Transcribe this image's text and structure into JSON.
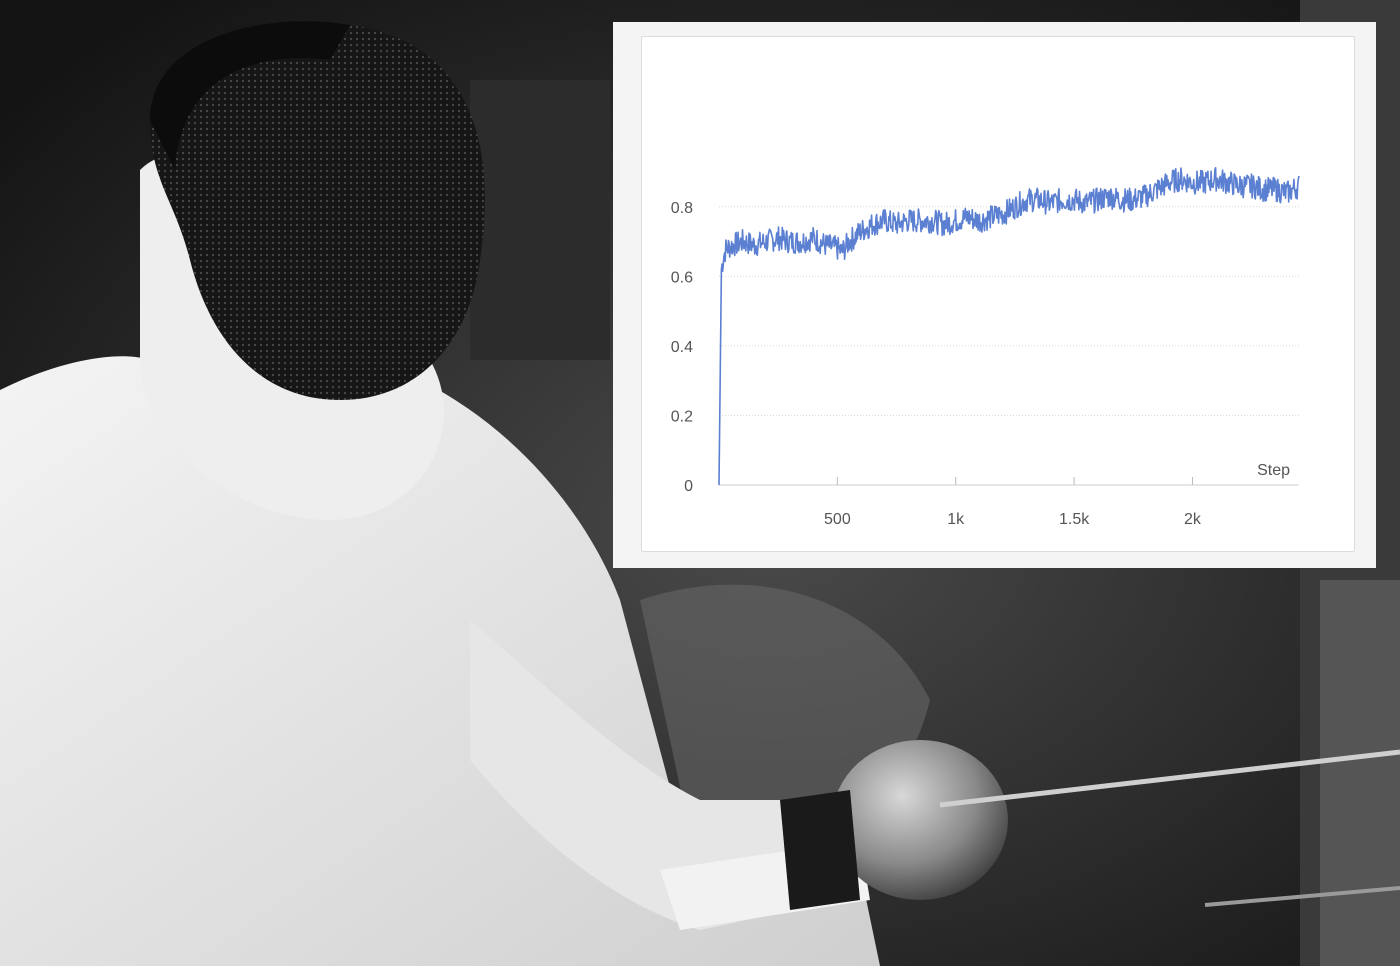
{
  "background": {
    "description_icon": "fencer-photo",
    "palette": [
      "#1f1f1f",
      "#eaeaea",
      "#3a3a3a"
    ]
  },
  "chart_data": {
    "type": "line",
    "title": "",
    "xlabel": "Step",
    "ylabel": "",
    "xlim": [
      0,
      2450
    ],
    "ylim": [
      0,
      0.9
    ],
    "x_ticks": [
      500,
      1000,
      1500,
      2000
    ],
    "x_tick_labels": [
      "500",
      "1k",
      "1.5k",
      "2k"
    ],
    "y_ticks": [
      0,
      0.2,
      0.4,
      0.6,
      0.8
    ],
    "y_tick_labels": [
      "0",
      "0.2",
      "0.4",
      "0.6",
      "0.8"
    ],
    "grid": true,
    "legend": "none",
    "series": [
      {
        "color": "#5b7fd1",
        "x": [
          0,
          10,
          20,
          30,
          60,
          100,
          150,
          200,
          250,
          300,
          350,
          400,
          450,
          500,
          520,
          550,
          600,
          650,
          700,
          750,
          800,
          850,
          900,
          950,
          1000,
          1050,
          1100,
          1150,
          1200,
          1250,
          1300,
          1350,
          1400,
          1450,
          1500,
          1550,
          1600,
          1650,
          1700,
          1750,
          1800,
          1850,
          1900,
          1950,
          2000,
          2050,
          2100,
          2150,
          2200,
          2250,
          2300,
          2350,
          2400,
          2450
        ],
        "y": [
          0.0,
          0.62,
          0.66,
          0.68,
          0.69,
          0.7,
          0.69,
          0.7,
          0.71,
          0.7,
          0.7,
          0.71,
          0.69,
          0.68,
          0.67,
          0.7,
          0.73,
          0.75,
          0.76,
          0.75,
          0.76,
          0.76,
          0.76,
          0.75,
          0.76,
          0.77,
          0.76,
          0.77,
          0.78,
          0.8,
          0.82,
          0.82,
          0.81,
          0.82,
          0.82,
          0.81,
          0.82,
          0.83,
          0.82,
          0.82,
          0.83,
          0.85,
          0.87,
          0.88,
          0.87,
          0.87,
          0.88,
          0.87,
          0.86,
          0.86,
          0.85,
          0.85,
          0.84,
          0.86
        ]
      }
    ]
  }
}
